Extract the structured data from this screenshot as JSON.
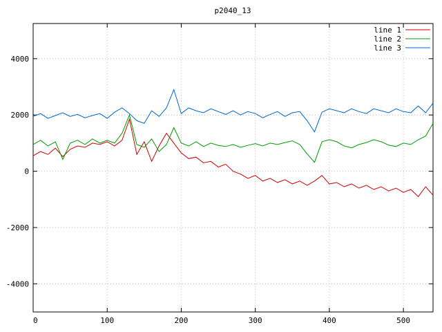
{
  "title": "p2040_13",
  "chart_data": {
    "type": "line",
    "title": "p2040_13",
    "xlabel": "",
    "ylabel": "",
    "xlim": [
      0,
      540
    ],
    "ylim": [
      -5000,
      5250
    ],
    "x_ticks": [
      0,
      100,
      200,
      300,
      400,
      500
    ],
    "y_ticks": [
      -4000,
      -2000,
      0,
      2000,
      4000
    ],
    "grid": true,
    "legend_position": "top-right",
    "x": [
      0,
      10,
      20,
      30,
      40,
      50,
      60,
      70,
      80,
      90,
      100,
      110,
      120,
      130,
      140,
      150,
      160,
      170,
      180,
      190,
      200,
      210,
      220,
      230,
      240,
      250,
      260,
      270,
      280,
      290,
      300,
      310,
      320,
      330,
      340,
      350,
      360,
      370,
      380,
      390,
      400,
      410,
      420,
      430,
      440,
      450,
      460,
      470,
      480,
      490,
      500,
      510,
      520,
      530,
      540
    ],
    "series": [
      {
        "name": "line 1",
        "color": "#cc0000",
        "values": [
          550,
          700,
          600,
          820,
          520,
          780,
          900,
          850,
          1000,
          950,
          1050,
          900,
          1100,
          1850,
          600,
          1050,
          350,
          900,
          1350,
          1000,
          650,
          450,
          500,
          300,
          350,
          150,
          250,
          0,
          -100,
          -250,
          -150,
          -350,
          -250,
          -400,
          -300,
          -450,
          -350,
          -500,
          -350,
          -150,
          -450,
          -400,
          -550,
          -450,
          -600,
          -500,
          -650,
          -550,
          -700,
          -600,
          -750,
          -650,
          -900,
          -550,
          -850
        ]
      },
      {
        "name": "line 2",
        "color": "#009900",
        "values": [
          950,
          1100,
          900,
          1050,
          420,
          1000,
          1100,
          950,
          1150,
          1000,
          1100,
          1000,
          1350,
          2000,
          950,
          850,
          1150,
          700,
          950,
          1550,
          1000,
          900,
          1050,
          880,
          1000,
          920,
          880,
          950,
          850,
          920,
          980,
          900,
          1000,
          950,
          1020,
          1080,
          950,
          620,
          320,
          1050,
          1120,
          1050,
          900,
          830,
          950,
          1020,
          1120,
          1050,
          930,
          880,
          1000,
          950,
          1120,
          1250,
          1700
        ]
      },
      {
        "name": "line 3",
        "color": "#0066cc",
        "values": [
          1950,
          2050,
          1880,
          1980,
          2080,
          1950,
          2020,
          1900,
          1980,
          2050,
          1880,
          2100,
          2250,
          2050,
          1800,
          1700,
          2150,
          1950,
          2250,
          2900,
          2050,
          2250,
          2150,
          2080,
          2220,
          2120,
          2020,
          2150,
          2000,
          2120,
          2050,
          1900,
          2020,
          2120,
          1950,
          2080,
          2120,
          1800,
          1400,
          2100,
          2220,
          2150,
          2080,
          2220,
          2120,
          2050,
          2220,
          2150,
          2080,
          2220,
          2120,
          2080,
          2320,
          2080,
          2420
        ]
      }
    ]
  }
}
